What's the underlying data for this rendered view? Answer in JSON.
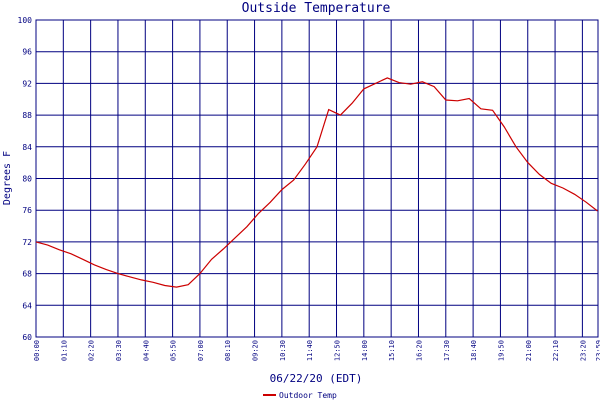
{
  "chart_data": {
    "type": "line",
    "title": "Outside Temperature",
    "xlabel": "06/22/20 (EDT)",
    "ylabel": "Degrees F",
    "ylim": [
      60,
      100
    ],
    "y_ticks": [
      "60",
      "64",
      "68",
      "72",
      "76",
      "80",
      "84",
      "88",
      "92",
      "96",
      "100"
    ],
    "x_tick_labels": [
      "00:00",
      "01:10",
      "02:20",
      "03:30",
      "04:40",
      "05:50",
      "07:00",
      "08:10",
      "09:20",
      "10:30",
      "11:40",
      "12:50",
      "14:00",
      "15:10",
      "16:20",
      "17:30",
      "18:40",
      "19:50",
      "21:00",
      "22:10",
      "23:20",
      "23:59"
    ],
    "grid": true,
    "legend_position": "bottom-left",
    "colors": {
      "series": "#cc0000",
      "grid": "#000080",
      "text": "#000080",
      "background": "#ffffff"
    },
    "series": [
      {
        "name": "Outdoor Temp",
        "x_hours": [
          0,
          0.5,
          1,
          1.5,
          2,
          2.5,
          3,
          3.5,
          4,
          4.5,
          5,
          5.5,
          6,
          6.5,
          7,
          7.5,
          8,
          8.5,
          9,
          9.5,
          10,
          10.5,
          11,
          11.5,
          12,
          12.5,
          13,
          13.5,
          14,
          14.5,
          15,
          15.5,
          16,
          16.5,
          17,
          17.5,
          18,
          18.5,
          19,
          19.5,
          20,
          20.5,
          21,
          21.5,
          22,
          22.5,
          23,
          23.5,
          23.98
        ],
        "values": [
          72.0,
          71.6,
          71.0,
          70.5,
          69.8,
          69.1,
          68.5,
          68.0,
          67.6,
          67.2,
          66.9,
          66.5,
          66.3,
          66.6,
          68.0,
          69.8,
          71.1,
          72.5,
          73.9,
          75.6,
          77.0,
          78.6,
          79.8,
          81.8,
          84.0,
          88.7,
          88.0,
          89.5,
          91.3,
          92.0,
          92.7,
          92.1,
          91.9,
          92.2,
          91.6,
          89.9,
          89.8,
          90.1,
          88.8,
          88.6,
          86.5,
          84.0,
          82.0,
          80.5,
          79.4,
          78.8,
          78.0,
          77.0,
          75.9
        ]
      }
    ]
  }
}
